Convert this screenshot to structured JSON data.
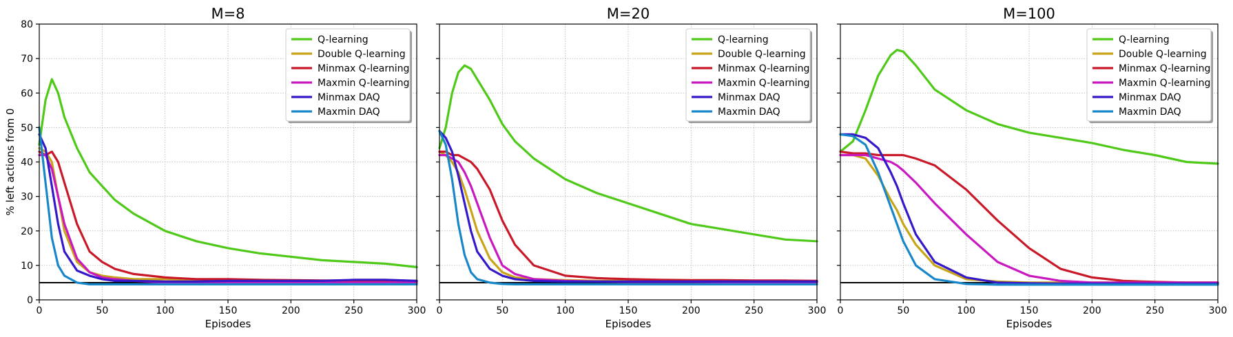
{
  "chart_data": [
    {
      "type": "line",
      "title": "M=8",
      "xlabel": "Episodes",
      "ylabel": "% left actions from 0",
      "xlim": [
        0,
        300
      ],
      "ylim": [
        0,
        80
      ],
      "xticks": [
        "0",
        "50",
        "100",
        "150",
        "200",
        "250",
        "300"
      ],
      "yticks": [
        "0",
        "10",
        "20",
        "30",
        "40",
        "50",
        "60",
        "70",
        "80"
      ],
      "grid": true,
      "legend_position": "top-right",
      "reference_line": 5,
      "x": [
        0,
        5,
        10,
        15,
        20,
        30,
        40,
        50,
        60,
        75,
        100,
        125,
        150,
        175,
        200,
        225,
        250,
        275,
        300
      ],
      "series": [
        {
          "name": "Q-learning",
          "color": "#4ec918",
          "values": [
            45,
            58,
            64,
            60,
            53,
            44,
            37,
            33,
            29,
            25,
            20,
            17,
            15,
            13.5,
            12.5,
            11.5,
            11,
            10.5,
            9.5
          ]
        },
        {
          "name": "Double Q-learning",
          "color": "#c9a418",
          "values": [
            44,
            43,
            40,
            30,
            20,
            11,
            8,
            7,
            6.5,
            6,
            6,
            5.8,
            5.6,
            5.5,
            5.4,
            5.4,
            5.4,
            5.3,
            5.3
          ]
        },
        {
          "name": "Minmax Q-learning",
          "color": "#c91828",
          "values": [
            43,
            42,
            43,
            40,
            34,
            22,
            14,
            11,
            9,
            7.5,
            6.5,
            6,
            6,
            5.8,
            5.7,
            5.6,
            5.6,
            5.5,
            5.5
          ]
        },
        {
          "name": "Maxmin Q-learning",
          "color": "#c918c0",
          "values": [
            42,
            42,
            38,
            30,
            22,
            12,
            8,
            6.5,
            6,
            5.5,
            5,
            5,
            5,
            5,
            5,
            5,
            5,
            5,
            5
          ]
        },
        {
          "name": "Minmax DAQ",
          "color": "#3418c9",
          "values": [
            48,
            44,
            33,
            22,
            14,
            8.5,
            7,
            6,
            5.5,
            5.5,
            5.3,
            5.3,
            5.5,
            5.5,
            5.5,
            5.5,
            5.8,
            5.8,
            5.5
          ]
        },
        {
          "name": "Maxmin DAQ",
          "color": "#1887c9",
          "values": [
            50,
            34,
            18,
            10,
            7,
            5,
            4.5,
            4.5,
            4.5,
            4.5,
            4.5,
            4.5,
            4.5,
            4.5,
            4.5,
            4.5,
            4.5,
            4.5,
            4.5
          ]
        }
      ]
    },
    {
      "type": "line",
      "title": "M=20",
      "xlabel": "Episodes",
      "ylabel": "",
      "xlim": [
        0,
        300
      ],
      "ylim": [
        0,
        80
      ],
      "xticks": [
        "0",
        "50",
        "100",
        "150",
        "200",
        "250",
        "300"
      ],
      "yticks": [],
      "grid": true,
      "legend_position": "top-right",
      "reference_line": 5,
      "x": [
        0,
        5,
        10,
        15,
        20,
        25,
        30,
        40,
        50,
        60,
        75,
        100,
        125,
        150,
        175,
        200,
        225,
        250,
        275,
        300
      ],
      "series": [
        {
          "name": "Q-learning",
          "color": "#4ec918",
          "values": [
            44,
            50,
            60,
            66,
            68,
            67,
            64,
            58,
            51,
            46,
            41,
            35,
            31,
            28,
            25,
            22,
            20.5,
            19,
            17.5,
            17
          ]
        },
        {
          "name": "Double Q-learning",
          "color": "#c9a418",
          "values": [
            43,
            42,
            40,
            37,
            32,
            26,
            20,
            12,
            8,
            6.5,
            6,
            5.7,
            5.5,
            5.5,
            5.4,
            5.4,
            5.3,
            5.3,
            5.3,
            5.2
          ]
        },
        {
          "name": "Minmax Q-learning",
          "color": "#c91828",
          "values": [
            43,
            43,
            42,
            42,
            41,
            40,
            38,
            32,
            23,
            16,
            10,
            7,
            6.3,
            6,
            5.8,
            5.7,
            5.7,
            5.6,
            5.6,
            5.5
          ]
        },
        {
          "name": "Maxmin Q-learning",
          "color": "#c918c0",
          "values": [
            42,
            42,
            41,
            40,
            37,
            33,
            28,
            18,
            10,
            7.5,
            6,
            5.5,
            5.3,
            5.2,
            5.2,
            5.2,
            5.1,
            5.1,
            5.1,
            5.1
          ]
        },
        {
          "name": "Minmax DAQ",
          "color": "#3418c9",
          "values": [
            49,
            47,
            43,
            36,
            28,
            20,
            14,
            9,
            7,
            6,
            5.5,
            5.3,
            5.3,
            5.3,
            5.3,
            5.3,
            5.3,
            5.3,
            5.3,
            5.3
          ]
        },
        {
          "name": "Maxmin DAQ",
          "color": "#1887c9",
          "values": [
            49,
            45,
            35,
            22,
            13,
            8,
            6,
            5,
            4.6,
            4.5,
            4.5,
            4.5,
            4.5,
            4.5,
            4.5,
            4.5,
            4.5,
            4.5,
            4.5,
            4.5
          ]
        }
      ]
    },
    {
      "type": "line",
      "title": "M=100",
      "xlabel": "Episodes",
      "ylabel": "",
      "xlim": [
        0,
        300
      ],
      "ylim": [
        0,
        80
      ],
      "xticks": [
        "0",
        "50",
        "100",
        "150",
        "200",
        "250",
        "300"
      ],
      "yticks": [],
      "grid": true,
      "legend_position": "top-right",
      "reference_line": 5,
      "x": [
        0,
        10,
        20,
        30,
        40,
        45,
        50,
        60,
        75,
        100,
        125,
        150,
        175,
        200,
        225,
        250,
        275,
        300
      ],
      "series": [
        {
          "name": "Q-learning",
          "color": "#4ec918",
          "values": [
            43,
            46,
            55,
            65,
            71,
            72.5,
            72,
            68,
            61,
            55,
            51,
            48.5,
            47,
            45.5,
            43.5,
            42,
            40,
            39.5
          ]
        },
        {
          "name": "Double Q-learning",
          "color": "#c9a418",
          "values": [
            42,
            42,
            41,
            36,
            29,
            26,
            22,
            16,
            10,
            6,
            5.3,
            5,
            5,
            5,
            5,
            5,
            5,
            5
          ]
        },
        {
          "name": "Minmax Q-learning",
          "color": "#c91828",
          "values": [
            43,
            42.5,
            42.5,
            42,
            42,
            42,
            42,
            41,
            39,
            32,
            23,
            15,
            9,
            6.5,
            5.5,
            5.2,
            5,
            5
          ]
        },
        {
          "name": "Maxmin Q-learning",
          "color": "#c918c0",
          "values": [
            42,
            42,
            42,
            41,
            40,
            39,
            37.5,
            34,
            28,
            19,
            11,
            7,
            5.5,
            5,
            5,
            5,
            5,
            5
          ]
        },
        {
          "name": "Minmax DAQ",
          "color": "#3418c9",
          "values": [
            48,
            48,
            47,
            44,
            37,
            33,
            28,
            19,
            11,
            6.5,
            5,
            4.8,
            4.7,
            4.7,
            4.7,
            4.7,
            4.7,
            4.7
          ]
        },
        {
          "name": "Maxmin DAQ",
          "color": "#1887c9",
          "values": [
            48,
            47.5,
            45,
            37,
            27,
            22,
            17,
            10,
            6,
            4.6,
            4.4,
            4.4,
            4.4,
            4.4,
            4.4,
            4.4,
            4.4,
            4.4
          ]
        }
      ]
    }
  ]
}
